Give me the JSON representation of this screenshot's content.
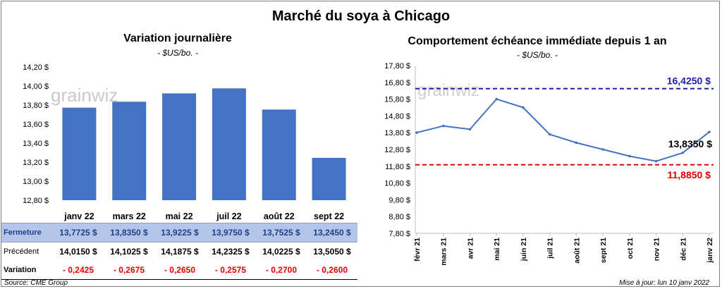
{
  "header": {
    "title": "Marché du soya à Chicago"
  },
  "left_chart": {
    "title": "Variation journalière",
    "subtitle": "- $US/bo. -",
    "watermark": "grainwiz"
  },
  "right_chart": {
    "title": "Comportement échéance immédiate depuis 1 an",
    "subtitle": "- $US/bo. -",
    "watermark": "grainwiz",
    "high_label": "16,4250 $",
    "low_label": "11,8850 $",
    "last_label": "13,8350 $"
  },
  "table": {
    "rows": [
      {
        "label": "Fermeture",
        "values": [
          "13,7725  $",
          "13,8350  $",
          "13,9225  $",
          "13,9750  $",
          "13,7525  $",
          "13,2450  $"
        ]
      },
      {
        "label": "Précédent",
        "values": [
          "14,0150  $",
          "14,1025  $",
          "14,1875  $",
          "14,2325  $",
          "14,0225  $",
          "13,5050  $"
        ]
      },
      {
        "label": "Variation",
        "values": [
          "- 0,2425",
          "- 0,2675",
          "- 0,2650",
          "- 0,2575",
          "- 0,2700",
          "- 0,2600"
        ]
      }
    ]
  },
  "footer": {
    "source": "Source: CME Group",
    "update": "Mise à jour: lun 10 janv 2022"
  },
  "colors": {
    "bar": "#4472c4",
    "line": "#4472c4",
    "high_line": "#1f1fa8",
    "low_line": "#e00000",
    "table_band": "#b4c6e7"
  },
  "chart_data": [
    {
      "type": "bar",
      "title": "Variation journalière",
      "ylabel": "- $US/bo. -",
      "categories": [
        "janv 22",
        "mars 22",
        "mai 22",
        "juil 22",
        "août 22",
        "sept 22"
      ],
      "values": [
        13.7725,
        13.835,
        13.9225,
        13.975,
        13.7525,
        13.245
      ],
      "ylim": [
        12.8,
        14.2
      ],
      "yticks": [
        "12,80 $",
        "13,00 $",
        "13,20 $",
        "13,40 $",
        "13,60 $",
        "13,80 $",
        "14,00 $",
        "14,20 $"
      ],
      "grid": false,
      "legend": "none"
    },
    {
      "type": "line",
      "title": "Comportement échéance immédiate depuis 1 an",
      "ylabel": "- $US/bo. -",
      "ylim": [
        7.8,
        17.8
      ],
      "yticks": [
        "7,80 $",
        "8,80 $",
        "9,80 $",
        "10,80 $",
        "11,80 $",
        "12,80 $",
        "13,80 $",
        "14,80 $",
        "15,80 $",
        "16,80 $",
        "17,80 $"
      ],
      "x_tick_labels": [
        "févr 21",
        "mars 21",
        "avr 21",
        "mai 21",
        "juin 21",
        "juil 21",
        "août 21",
        "sept 21",
        "oct 21",
        "nov 21",
        "déc 21",
        "janv 22"
      ],
      "grid": false,
      "reference_lines": [
        {
          "name": "high",
          "value": 16.425,
          "style": "dashed"
        },
        {
          "name": "low",
          "value": 11.885,
          "style": "dashed"
        }
      ],
      "series": [
        {
          "x": [
            "févr 21",
            "mars 21",
            "avr 21",
            "mai 21",
            "juin 21",
            "juil 21",
            "août 21",
            "sept 21",
            "oct 21",
            "nov 21",
            "déc 21",
            "janv 22"
          ],
          "values": [
            13.8,
            14.2,
            14.0,
            15.8,
            15.3,
            13.7,
            13.2,
            12.8,
            12.4,
            12.1,
            12.6,
            13.84
          ]
        }
      ]
    }
  ]
}
